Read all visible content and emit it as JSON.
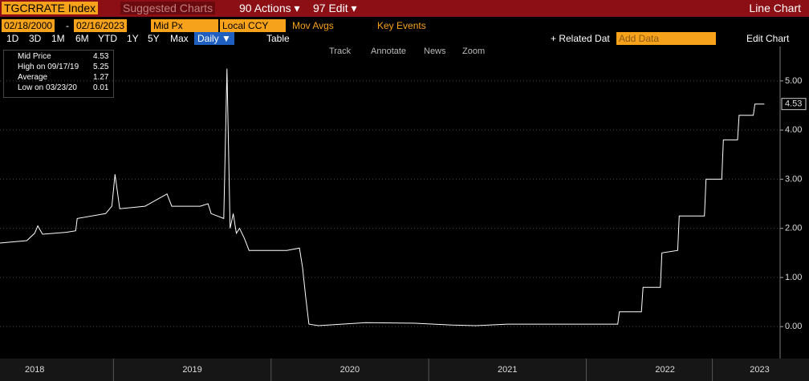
{
  "toolbar": {
    "ticker": "TGCRRATE Index",
    "suggested": "Suggested Charts",
    "actions": "90 Actions ▾",
    "edit": "97 Edit ▾",
    "view": "Line Chart",
    "start_date": "02/18/2000",
    "dash": "-",
    "end_date": "02/16/2023",
    "field": "Mid Px",
    "currency": "Local CCY",
    "mov_avgs": "Mov Avgs",
    "key_events": "Key Events",
    "periods": [
      "1D",
      "3D",
      "1M",
      "6M",
      "YTD",
      "1Y",
      "5Y",
      "Max"
    ],
    "frequency": "Daily ▼",
    "table": "Table",
    "related": "+ Related Dat",
    "add_data": "Add Data",
    "edit_chart": "Edit Chart",
    "tools": [
      "Track",
      "Annotate",
      "News",
      "Zoom"
    ]
  },
  "legend": {
    "rows": [
      {
        "label": "Mid Price",
        "value": 4.53
      },
      {
        "label": "High on 09/17/19",
        "value": 5.25
      },
      {
        "label": "Average",
        "value": 1.27
      },
      {
        "label": "Low on 03/23/20",
        "value": 0.01
      }
    ]
  },
  "chart_data": {
    "type": "line",
    "color": "#ffffff",
    "x": [
      2018.28,
      2018.35,
      2018.45,
      2018.5,
      2018.52,
      2018.55,
      2018.7,
      2018.76,
      2018.77,
      2018.95,
      2018.99,
      2019.01,
      2019.04,
      2019.2,
      2019.34,
      2019.37,
      2019.55,
      2019.6,
      2019.62,
      2019.7,
      2019.72,
      2019.74,
      2019.76,
      2019.78,
      2019.8,
      2019.83,
      2019.86,
      2020.0,
      2020.1,
      2020.18,
      2020.2,
      2020.22,
      2020.24,
      2020.3,
      2020.6,
      2020.9,
      2021.15,
      2021.3,
      2021.5,
      2022.0,
      2022.2,
      2022.21,
      2022.35,
      2022.36,
      2022.47,
      2022.48,
      2022.58,
      2022.59,
      2022.75,
      2022.76,
      2022.86,
      2022.87,
      2022.96,
      2022.97,
      2023.06,
      2023.07,
      2023.13
    ],
    "values": [
      1.7,
      1.72,
      1.75,
      1.9,
      2.05,
      1.88,
      1.92,
      1.95,
      2.2,
      2.3,
      2.45,
      3.1,
      2.4,
      2.45,
      2.7,
      2.45,
      2.45,
      2.5,
      2.3,
      2.2,
      5.25,
      2.0,
      2.3,
      1.9,
      2.0,
      1.8,
      1.55,
      1.55,
      1.55,
      1.6,
      1.2,
      0.6,
      0.05,
      0.02,
      0.08,
      0.07,
      0.03,
      0.02,
      0.05,
      0.05,
      0.05,
      0.3,
      0.3,
      0.8,
      0.8,
      1.5,
      1.55,
      2.25,
      2.25,
      3.0,
      3.0,
      3.8,
      3.8,
      4.3,
      4.3,
      4.53,
      4.53
    ],
    "xlim": [
      2018.28,
      2023.23
    ],
    "xticks": [
      {
        "value": 2018.5,
        "label": "2018"
      },
      {
        "value": 2019.5,
        "label": "2019"
      },
      {
        "value": 2020.5,
        "label": "2020"
      },
      {
        "value": 2021.5,
        "label": "2021"
      },
      {
        "value": 2022.5,
        "label": "2022"
      },
      {
        "value": 2023.1,
        "label": "2023"
      }
    ],
    "ylim": [
      -0.65,
      5.7
    ],
    "yticks": [
      {
        "value": 0,
        "label": "0.00"
      },
      {
        "value": 1,
        "label": "1.00"
      },
      {
        "value": 2,
        "label": "2.00"
      },
      {
        "value": 3,
        "label": "3.00"
      },
      {
        "value": 4,
        "label": "4.00"
      },
      {
        "value": 5,
        "label": "5.00"
      }
    ],
    "grid": true
  }
}
